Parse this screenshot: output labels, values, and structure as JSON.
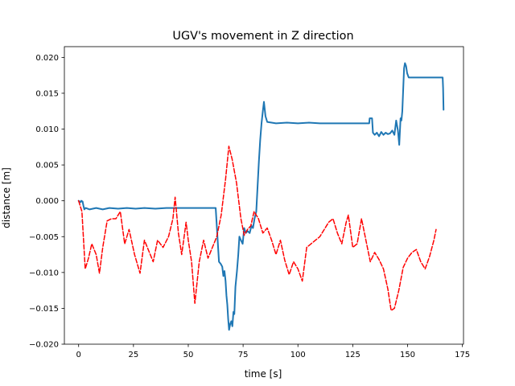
{
  "chart_data": {
    "type": "line",
    "title": "UGV's movement in Z direction",
    "xlabel": "time [s]",
    "ylabel": "distance [m]",
    "xlim": [
      -6.5,
      175.5
    ],
    "ylim": [
      -0.02,
      0.0215
    ],
    "xticks": [
      0,
      25,
      50,
      75,
      100,
      125,
      150,
      175
    ],
    "yticks": [
      -0.02,
      -0.015,
      -0.01,
      -0.005,
      0.0,
      0.005,
      0.01,
      0.015,
      0.02
    ],
    "xtick_labels": [
      "0",
      "25",
      "50",
      "75",
      "100",
      "125",
      "150",
      "175"
    ],
    "ytick_labels": [
      "−0.020",
      "−0.015",
      "−0.010",
      "−0.005",
      "0.000",
      "0.005",
      "0.010",
      "0.015",
      "0.020"
    ],
    "grid": false,
    "legend": false,
    "series": [
      {
        "color": "#1f77b4",
        "style": "solid",
        "points": [
          [
            0,
            0.0
          ],
          [
            0.8,
            -0.0002
          ],
          [
            1.2,
            0.0
          ],
          [
            1.8,
            -0.0001
          ],
          [
            2.2,
            -0.0007
          ],
          [
            2.6,
            -0.0012
          ],
          [
            3.2,
            -0.001
          ],
          [
            5,
            -0.0012
          ],
          [
            8,
            -0.001
          ],
          [
            11,
            -0.0012
          ],
          [
            14,
            -0.001
          ],
          [
            18,
            -0.0011
          ],
          [
            22,
            -0.001
          ],
          [
            26,
            -0.0011
          ],
          [
            30,
            -0.001
          ],
          [
            35,
            -0.0011
          ],
          [
            40,
            -0.001
          ],
          [
            45,
            -0.001
          ],
          [
            50,
            -0.001
          ],
          [
            55,
            -0.001
          ],
          [
            60,
            -0.001
          ],
          [
            62.5,
            -0.001
          ],
          [
            63.2,
            -0.0045
          ],
          [
            64,
            -0.0085
          ],
          [
            64.8,
            -0.0088
          ],
          [
            65.5,
            -0.0092
          ],
          [
            66,
            -0.0105
          ],
          [
            66.5,
            -0.0098
          ],
          [
            67,
            -0.0112
          ],
          [
            67.4,
            -0.0132
          ],
          [
            67.8,
            -0.0145
          ],
          [
            68.2,
            -0.0165
          ],
          [
            68.6,
            -0.018
          ],
          [
            69.1,
            -0.0172
          ],
          [
            69.6,
            -0.0168
          ],
          [
            70.1,
            -0.0175
          ],
          [
            70.6,
            -0.0155
          ],
          [
            71.0,
            -0.0158
          ],
          [
            71.5,
            -0.012
          ],
          [
            72.2,
            -0.0098
          ],
          [
            72.8,
            -0.0075
          ],
          [
            73.3,
            -0.005
          ],
          [
            74.0,
            -0.0055
          ],
          [
            74.8,
            -0.006
          ],
          [
            75.5,
            -0.0038
          ],
          [
            76.2,
            -0.0045
          ],
          [
            77.0,
            -0.0042
          ],
          [
            78.0,
            -0.0045
          ],
          [
            78.8,
            -0.0035
          ],
          [
            79.5,
            -0.0038
          ],
          [
            80.2,
            -0.0025
          ],
          [
            81.0,
            -0.0015
          ],
          [
            81.6,
            0.002
          ],
          [
            82.2,
            0.0055
          ],
          [
            82.8,
            0.0085
          ],
          [
            83.4,
            0.0108
          ],
          [
            84.0,
            0.0125
          ],
          [
            84.5,
            0.0138
          ],
          [
            85.2,
            0.0118
          ],
          [
            86.0,
            0.011
          ],
          [
            90,
            0.0108
          ],
          [
            95,
            0.0109
          ],
          [
            100,
            0.0108
          ],
          [
            105,
            0.0109
          ],
          [
            110,
            0.0108
          ],
          [
            115,
            0.0108
          ],
          [
            120,
            0.0108
          ],
          [
            125,
            0.0108
          ],
          [
            130,
            0.0108
          ],
          [
            132.5,
            0.0108
          ],
          [
            132.7,
            0.0115
          ],
          [
            133.8,
            0.0115
          ],
          [
            134.2,
            0.0095
          ],
          [
            135,
            0.0092
          ],
          [
            136,
            0.0095
          ],
          [
            137,
            0.009
          ],
          [
            138,
            0.0096
          ],
          [
            139,
            0.0092
          ],
          [
            140,
            0.0095
          ],
          [
            141,
            0.0093
          ],
          [
            142,
            0.0094
          ],
          [
            143,
            0.0098
          ],
          [
            144,
            0.0092
          ],
          [
            144.8,
            0.0112
          ],
          [
            145.6,
            0.0098
          ],
          [
            146.2,
            0.0078
          ],
          [
            146.8,
            0.0115
          ],
          [
            147.2,
            0.0112
          ],
          [
            147.6,
            0.0125
          ],
          [
            148.0,
            0.0155
          ],
          [
            148.4,
            0.0185
          ],
          [
            148.8,
            0.0192
          ],
          [
            149.3,
            0.0188
          ],
          [
            149.8,
            0.0178
          ],
          [
            150.5,
            0.0172
          ],
          [
            155,
            0.0172
          ],
          [
            160,
            0.0172
          ],
          [
            165,
            0.0172
          ],
          [
            166.0,
            0.0172
          ],
          [
            166.2,
            0.0157
          ],
          [
            166.4,
            0.0127
          ]
        ]
      },
      {
        "color": "#ff0000",
        "style": "dashed",
        "points": [
          [
            0,
            0.0
          ],
          [
            1.5,
            -0.0015
          ],
          [
            3,
            -0.0095
          ],
          [
            4.5,
            -0.008
          ],
          [
            6,
            -0.006
          ],
          [
            8,
            -0.0075
          ],
          [
            9.5,
            -0.0101
          ],
          [
            11,
            -0.0065
          ],
          [
            13,
            -0.0028
          ],
          [
            15,
            -0.0025
          ],
          [
            17,
            -0.0025
          ],
          [
            19,
            -0.0015
          ],
          [
            21,
            -0.006
          ],
          [
            23,
            -0.004
          ],
          [
            25.5,
            -0.0075
          ],
          [
            28,
            -0.0101
          ],
          [
            30,
            -0.0055
          ],
          [
            32,
            -0.007
          ],
          [
            34,
            -0.0085
          ],
          [
            36,
            -0.0055
          ],
          [
            38.5,
            -0.0065
          ],
          [
            41,
            -0.005
          ],
          [
            43,
            -0.0025
          ],
          [
            44,
            0.0005
          ],
          [
            45.5,
            -0.0045
          ],
          [
            47,
            -0.0075
          ],
          [
            49,
            -0.003
          ],
          [
            50,
            -0.0055
          ],
          [
            51.5,
            -0.0085
          ],
          [
            53,
            -0.0143
          ],
          [
            55,
            -0.0085
          ],
          [
            57,
            -0.0055
          ],
          [
            59,
            -0.008
          ],
          [
            61,
            -0.0065
          ],
          [
            63,
            -0.005
          ],
          [
            65,
            -0.002
          ],
          [
            67,
            0.003
          ],
          [
            68.5,
            0.0076
          ],
          [
            70,
            0.0058
          ],
          [
            72,
            0.0025
          ],
          [
            74,
            -0.0025
          ],
          [
            75.5,
            -0.0048
          ],
          [
            77,
            -0.004
          ],
          [
            78.5,
            -0.0035
          ],
          [
            80,
            -0.0015
          ],
          [
            82,
            -0.0025
          ],
          [
            84,
            -0.0045
          ],
          [
            86,
            -0.0038
          ],
          [
            88,
            -0.0055
          ],
          [
            90,
            -0.0075
          ],
          [
            92,
            -0.0055
          ],
          [
            94,
            -0.0083
          ],
          [
            96,
            -0.0103
          ],
          [
            98,
            -0.0085
          ],
          [
            100,
            -0.0095
          ],
          [
            102,
            -0.0112
          ],
          [
            104,
            -0.0065
          ],
          [
            106,
            -0.006
          ],
          [
            108,
            -0.0055
          ],
          [
            110,
            -0.005
          ],
          [
            112,
            -0.004
          ],
          [
            114,
            -0.003
          ],
          [
            116,
            -0.0025
          ],
          [
            118,
            -0.0045
          ],
          [
            120,
            -0.006
          ],
          [
            122,
            -0.003
          ],
          [
            123,
            -0.002
          ],
          [
            125,
            -0.0065
          ],
          [
            127,
            -0.006
          ],
          [
            129,
            -0.0025
          ],
          [
            131,
            -0.0055
          ],
          [
            133,
            -0.0085
          ],
          [
            135,
            -0.0072
          ],
          [
            137,
            -0.0082
          ],
          [
            139,
            -0.0095
          ],
          [
            141,
            -0.0123
          ],
          [
            142.5,
            -0.0153
          ],
          [
            144,
            -0.015
          ],
          [
            146,
            -0.0125
          ],
          [
            148,
            -0.0093
          ],
          [
            150,
            -0.008
          ],
          [
            152,
            -0.0072
          ],
          [
            154,
            -0.0068
          ],
          [
            156,
            -0.0085
          ],
          [
            158,
            -0.0095
          ],
          [
            160,
            -0.0078
          ],
          [
            162,
            -0.0055
          ],
          [
            163,
            -0.004
          ]
        ]
      }
    ]
  }
}
